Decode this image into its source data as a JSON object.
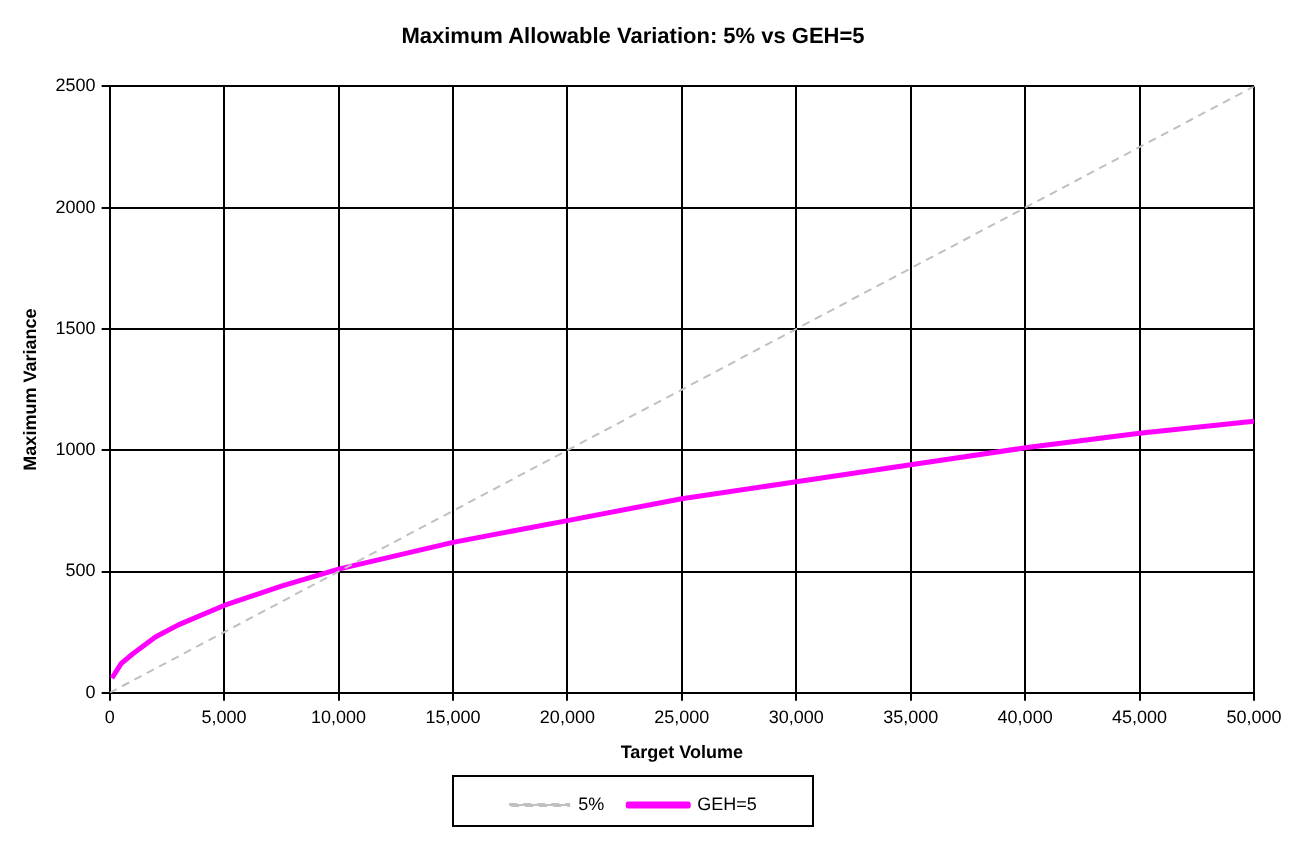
{
  "chart_data": {
    "type": "line",
    "title": "Maximum Allowable Variation: 5% vs GEH=5",
    "xlabel": "Target Volume",
    "ylabel": "Maximum Variance",
    "series": [
      {
        "name": "5%",
        "color": "#c0c0c0",
        "line_style": "dashed",
        "x": [
          0,
          50000
        ],
        "values": [
          0,
          2500
        ]
      },
      {
        "name": "GEH=5",
        "color": "#ff00ff",
        "line_style": "solid",
        "x": [
          100,
          500,
          1000,
          2000,
          3000,
          5000,
          7500,
          10000,
          15000,
          20000,
          25000,
          30000,
          35000,
          40000,
          45000,
          50000
        ],
        "values": [
          60,
          120,
          160,
          230,
          280,
          360,
          440,
          510,
          620,
          710,
          800,
          870,
          940,
          1010,
          1070,
          1120
        ]
      }
    ],
    "xlim": [
      0,
      50000
    ],
    "xticks": [
      0,
      {
        "value": 5000,
        "label": "5,000"
      },
      {
        "value": 10000,
        "label": "10,000"
      },
      {
        "value": 15000,
        "label": "15,000"
      },
      {
        "value": 20000,
        "label": "20,000"
      },
      {
        "value": 25000,
        "label": "25,000"
      },
      {
        "value": 30000,
        "label": "30,000"
      },
      {
        "value": 35000,
        "label": "35,000"
      },
      {
        "value": 40000,
        "label": "40,000"
      },
      {
        "value": 45000,
        "label": "45,000"
      },
      {
        "value": 50000,
        "label": "50,000"
      }
    ],
    "ylim": [
      0,
      2500
    ],
    "yticks": [
      0,
      500,
      1000,
      1500,
      2000,
      2500
    ],
    "grid": true,
    "legend": "bottom",
    "marker": "none"
  }
}
